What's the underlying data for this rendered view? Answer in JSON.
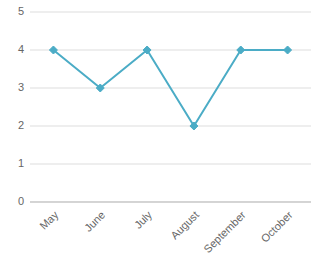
{
  "chart_data": {
    "type": "line",
    "categories": [
      "May",
      "June",
      "July",
      "August",
      "September",
      "October"
    ],
    "values": [
      4,
      3,
      4,
      2,
      4,
      4
    ],
    "color": "#4bacc6",
    "marker": "diamond",
    "ylim": [
      0,
      5
    ],
    "yticks": [
      0,
      1,
      2,
      3,
      4,
      5
    ],
    "grid": true
  }
}
